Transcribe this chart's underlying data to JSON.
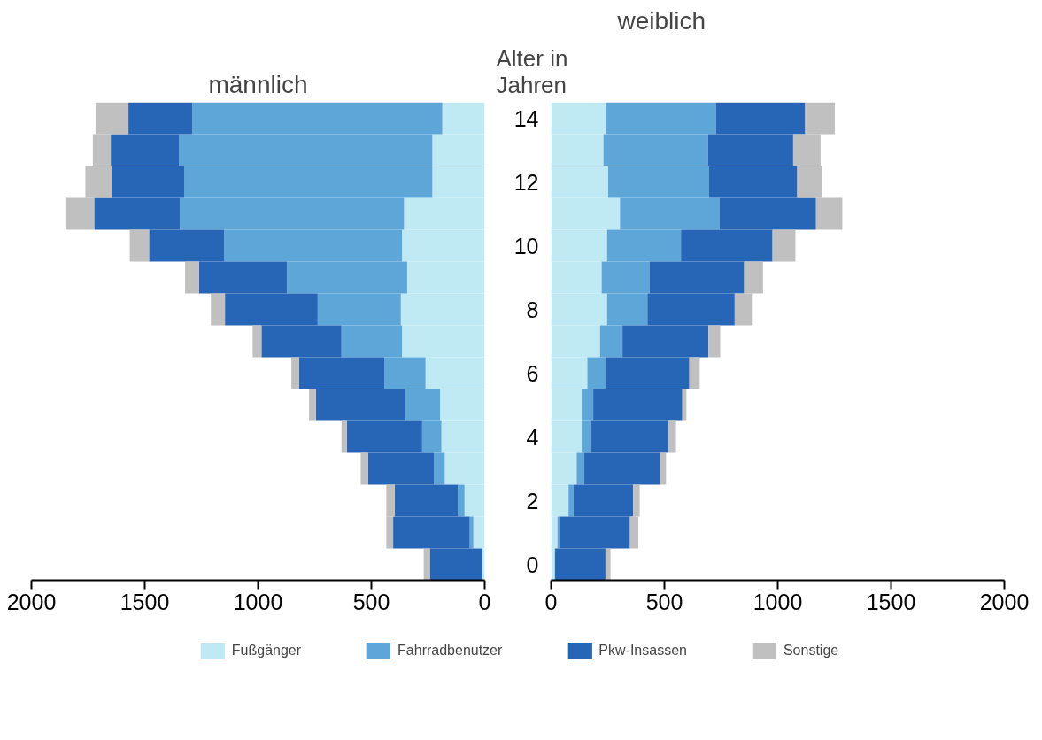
{
  "chart_data": [
    {
      "type": "bar",
      "orientation": "horizontal",
      "stacked": true,
      "title": "männlich",
      "categories": [
        "14",
        null,
        "12",
        null,
        "10",
        null,
        "8",
        null,
        "6",
        null,
        "4",
        null,
        "2",
        null,
        "0"
      ],
      "series": [
        {
          "color": "#bfe9f3",
          "values": [
            187,
            231,
            231,
            356,
            365,
            342,
            370,
            365,
            261,
            197,
            191,
            176,
            89,
            50,
            10
          ]
        },
        {
          "color": "#5ea5d8",
          "values": [
            1103,
            1118,
            1095,
            989,
            785,
            530,
            367,
            267,
            182,
            152,
            85,
            48,
            29,
            16,
            0
          ]
        },
        {
          "color": "#2766b7",
          "values": [
            282,
            301,
            320,
            378,
            331,
            389,
            409,
            353,
            376,
            396,
            332,
            291,
            279,
            338,
            232
          ]
        },
        {
          "color": "#c0c0c0",
          "values": [
            145,
            79,
            116,
            127,
            85,
            61,
            62,
            39,
            34,
            30,
            24,
            32,
            37,
            30,
            27
          ]
        }
      ],
      "xlim": [
        2000,
        0
      ],
      "xticks": [
        0,
        500,
        1000,
        1500,
        2000
      ],
      "tick_labels": "x",
      "grid": false
    },
    {
      "type": "bar",
      "orientation": "horizontal",
      "stacked": true,
      "title": "weiblich",
      "ylabel": "Alter in Jahren",
      "categories": [
        "14",
        null,
        "12",
        null,
        "10",
        null,
        "8",
        null,
        "6",
        null,
        "4",
        null,
        "2",
        null,
        "0"
      ],
      "series": [
        {
          "name": "Fußgänger",
          "color": "#bfe9f3",
          "values": [
            241,
            231,
            252,
            304,
            247,
            223,
            247,
            216,
            160,
            135,
            135,
            113,
            77,
            28,
            17
          ]
        },
        {
          "name": "Fahrradbenutzer",
          "color": "#5ea5d8",
          "values": [
            486,
            461,
            445,
            440,
            326,
            211,
            178,
            99,
            81,
            51,
            42,
            33,
            22,
            7,
            0
          ]
        },
        {
          "name": "Pkw-Insassen",
          "color": "#2766b7",
          "values": [
            394,
            376,
            389,
            425,
            404,
            418,
            385,
            379,
            369,
            393,
            340,
            335,
            263,
            313,
            223
          ]
        },
        {
          "name": "Sonstige",
          "color": "#c0c0c0",
          "values": [
            131,
            121,
            108,
            116,
            101,
            83,
            76,
            52,
            46,
            18,
            34,
            26,
            29,
            37,
            22
          ]
        }
      ],
      "xlim": [
        0,
        2000
      ],
      "xticks": [
        0,
        500,
        1000,
        1500,
        2000
      ],
      "grid": false,
      "legend": "bottom"
    }
  ]
}
